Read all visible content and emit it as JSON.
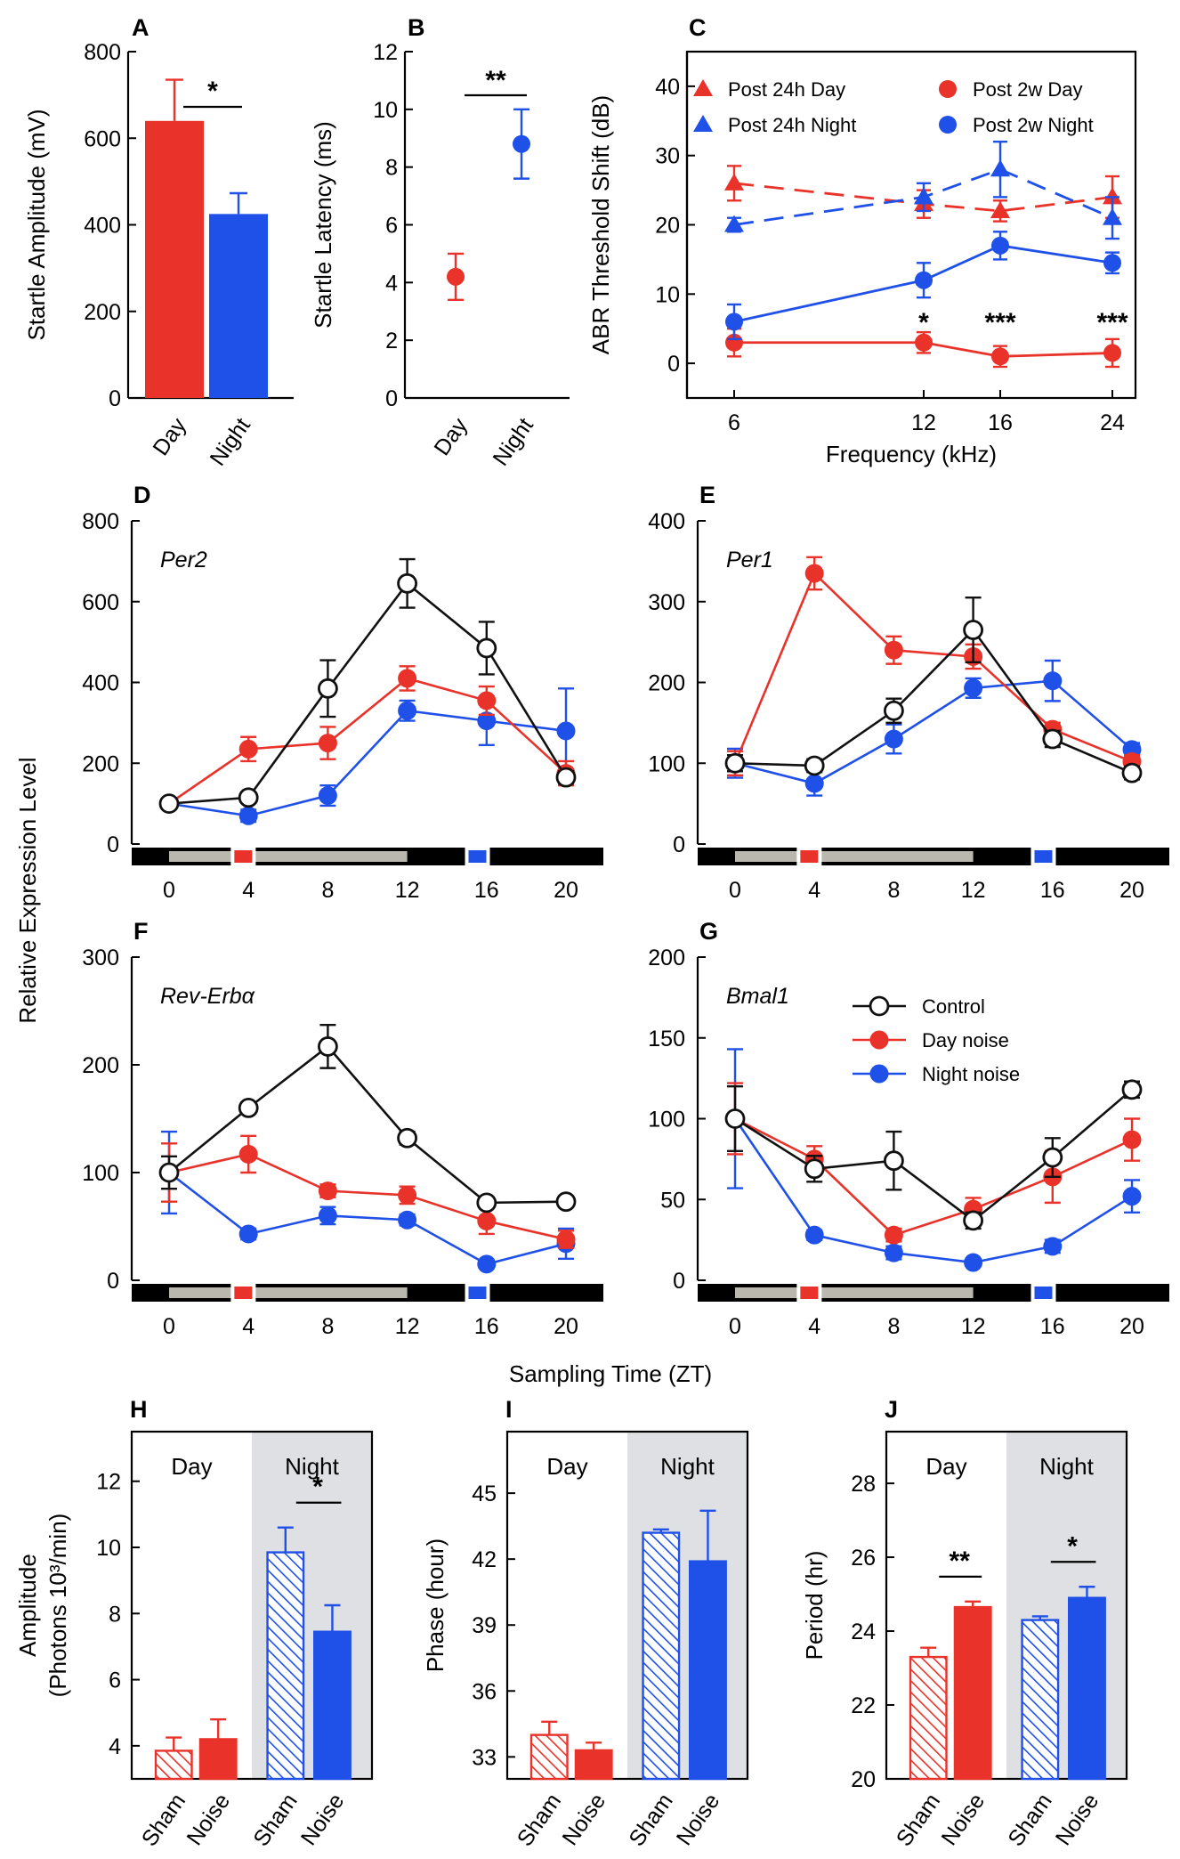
{
  "colors": {
    "day": "#e8322a",
    "night": "#1f50e8",
    "control": "#111111",
    "light_bar": "#bab8ae",
    "dark_bar": "#000000",
    "night_shade": "#dfe0e3"
  },
  "chart_data": [
    {
      "id": "A",
      "type": "bar",
      "letter": "A",
      "ylabel": "Startle Amplitude (mV)",
      "categories": [
        "Day",
        "Night"
      ],
      "values": [
        640,
        425
      ],
      "errors": [
        95,
        48
      ],
      "ylim": [
        0,
        800
      ],
      "yticks": [
        "0",
        "200",
        "400",
        "600",
        "800"
      ],
      "significance": "*"
    },
    {
      "id": "B",
      "type": "scatter",
      "letter": "B",
      "ylabel": "Startle Latency (ms)",
      "categories": [
        "Day",
        "Night"
      ],
      "values": [
        4.2,
        8.8
      ],
      "errors": [
        0.8,
        1.2
      ],
      "ylim": [
        0,
        12
      ],
      "yticks": [
        "0",
        "2",
        "4",
        "6",
        "8",
        "10",
        "12"
      ],
      "significance": "**"
    },
    {
      "id": "C",
      "type": "line",
      "letter": "C",
      "ylabel": "ABR Threshold Shift (dB)",
      "xlabel": "Frequency (kHz)",
      "x": [
        6,
        12,
        16,
        24
      ],
      "xticks": [
        "6",
        "12",
        "16",
        "24"
      ],
      "ylim": [
        -5,
        45
      ],
      "yticks": [
        "0",
        "10",
        "20",
        "30",
        "40"
      ],
      "series": [
        {
          "name": "Post 24h Day",
          "values": [
            26,
            23,
            22,
            24
          ],
          "errors": [
            2.5,
            2,
            1.5,
            3
          ]
        },
        {
          "name": "Post 24h Night",
          "values": [
            20,
            24,
            28,
            21
          ],
          "errors": [
            1,
            2,
            4,
            3
          ]
        },
        {
          "name": "Post 2w Day",
          "values": [
            3,
            3,
            1,
            1.5
          ],
          "errors": [
            2,
            1.5,
            1.5,
            2
          ]
        },
        {
          "name": "Post 2w Night",
          "values": [
            6,
            12,
            17,
            14.5
          ],
          "errors": [
            2.5,
            2.5,
            2,
            1.5
          ]
        }
      ],
      "significance": [
        "*",
        "***",
        "***"
      ]
    },
    {
      "id": "D",
      "type": "line",
      "letter": "D",
      "gene": "Per2",
      "x": [
        0,
        4,
        8,
        12,
        16,
        20
      ],
      "xticks": [
        "0",
        "4",
        "8",
        "12",
        "16",
        "20"
      ],
      "ylim": [
        0,
        800
      ],
      "yticks": [
        "0",
        "200",
        "400",
        "600",
        "800"
      ],
      "series": [
        {
          "name": "Control",
          "values": [
            100,
            115,
            385,
            645,
            485,
            165
          ],
          "errors": [
            10,
            10,
            70,
            60,
            65,
            15
          ]
        },
        {
          "name": "Day noise",
          "values": [
            100,
            235,
            250,
            410,
            355,
            175
          ],
          "errors": [
            8,
            30,
            40,
            30,
            35,
            30
          ]
        },
        {
          "name": "Night noise",
          "values": [
            100,
            70,
            120,
            330,
            305,
            280
          ],
          "errors": [
            8,
            15,
            25,
            25,
            60,
            105
          ]
        }
      ]
    },
    {
      "id": "E",
      "type": "line",
      "letter": "E",
      "gene": "Per1",
      "x": [
        0,
        4,
        8,
        12,
        16,
        20
      ],
      "xticks": [
        "0",
        "4",
        "8",
        "12",
        "16",
        "20"
      ],
      "ylim": [
        0,
        400
      ],
      "yticks": [
        "0",
        "100",
        "200",
        "300",
        "400"
      ],
      "series": [
        {
          "name": "Control",
          "values": [
            100,
            97,
            165,
            265,
            130,
            88
          ],
          "errors": [
            10,
            8,
            15,
            40,
            10,
            8
          ]
        },
        {
          "name": "Day noise",
          "values": [
            100,
            335,
            240,
            232,
            142,
            102
          ],
          "errors": [
            15,
            20,
            17,
            15,
            8,
            8
          ]
        },
        {
          "name": "Night noise",
          "values": [
            100,
            75,
            130,
            193,
            202,
            117
          ],
          "errors": [
            18,
            15,
            18,
            12,
            25,
            8
          ]
        }
      ]
    },
    {
      "id": "F",
      "type": "line",
      "letter": "F",
      "gene": "Rev-Erbα",
      "x": [
        0,
        4,
        8,
        12,
        16,
        20
      ],
      "xticks": [
        "0",
        "4",
        "8",
        "12",
        "16",
        "20"
      ],
      "ylim": [
        0,
        300
      ],
      "yticks": [
        "0",
        "100",
        "200",
        "300"
      ],
      "series": [
        {
          "name": "Control",
          "values": [
            100,
            160,
            217,
            132,
            72,
            73
          ],
          "errors": [
            15,
            5,
            20,
            6,
            3,
            3
          ]
        },
        {
          "name": "Day noise",
          "values": [
            100,
            117,
            83,
            79,
            55,
            38
          ],
          "errors": [
            27,
            17,
            6,
            8,
            12,
            8
          ]
        },
        {
          "name": "Night noise",
          "values": [
            100,
            43,
            60,
            56,
            15,
            34
          ],
          "errors": [
            38,
            5,
            8,
            5,
            3,
            14
          ]
        }
      ]
    },
    {
      "id": "G",
      "type": "line",
      "letter": "G",
      "gene": "Bmal1",
      "x": [
        0,
        4,
        8,
        12,
        16,
        20
      ],
      "xticks": [
        "0",
        "4",
        "8",
        "12",
        "16",
        "20"
      ],
      "ylim": [
        0,
        200
      ],
      "yticks": [
        "0",
        "50",
        "100",
        "150",
        "200"
      ],
      "series": [
        {
          "name": "Control",
          "values": [
            100,
            69,
            74,
            37,
            76,
            118
          ],
          "errors": [
            20,
            8,
            18,
            5,
            12,
            5
          ]
        },
        {
          "name": "Day noise",
          "values": [
            100,
            75,
            28,
            44,
            64,
            87
          ],
          "errors": [
            22,
            8,
            4,
            7,
            16,
            13
          ]
        },
        {
          "name": "Night noise",
          "values": [
            100,
            28,
            17,
            11,
            21,
            52
          ],
          "errors": [
            43,
            3,
            4,
            2,
            4,
            10
          ]
        }
      ]
    },
    {
      "id": "H",
      "type": "bar",
      "letter": "H",
      "ylabel": "Amplitude",
      "ylabel2": "(Photons 10³/min)",
      "categories": [
        "Sham",
        "Noise",
        "Sham",
        "Noise"
      ],
      "groups": [
        "Day",
        "Night"
      ],
      "values": [
        3.85,
        4.2,
        9.85,
        7.45
      ],
      "errors": [
        0.4,
        0.6,
        0.75,
        0.8
      ],
      "ylim": [
        3,
        13.5
      ],
      "yticks": [
        "4",
        "6",
        "8",
        "10",
        "12"
      ],
      "significance": [
        "",
        "*"
      ]
    },
    {
      "id": "I",
      "type": "bar",
      "letter": "I",
      "ylabel": "Phase (hour)",
      "categories": [
        "Sham",
        "Noise",
        "Sham",
        "Noise"
      ],
      "groups": [
        "Day",
        "Night"
      ],
      "values": [
        34.0,
        33.3,
        43.2,
        41.9
      ],
      "errors": [
        0.6,
        0.35,
        0.15,
        2.3
      ],
      "ylim": [
        32,
        47.8
      ],
      "yticks": [
        "33",
        "36",
        "39",
        "42",
        "45"
      ],
      "significance": [
        "",
        ""
      ]
    },
    {
      "id": "J",
      "type": "bar",
      "letter": "J",
      "ylabel": "Period (hr)",
      "categories": [
        "Sham",
        "Noise",
        "Sham",
        "Noise"
      ],
      "groups": [
        "Day",
        "Night"
      ],
      "values": [
        23.3,
        24.65,
        24.3,
        24.9
      ],
      "errors": [
        0.25,
        0.15,
        0.1,
        0.3
      ],
      "ylim": [
        20,
        29.4
      ],
      "yticks": [
        "20",
        "22",
        "24",
        "26",
        "28"
      ],
      "significance": [
        "**",
        "*"
      ]
    }
  ],
  "shared": {
    "ylabel_DG": "Relative Expression Level",
    "xlabel_DG": "Sampling Time (ZT)",
    "legend_DG": [
      "Control",
      "Day noise",
      "Night noise"
    ]
  }
}
